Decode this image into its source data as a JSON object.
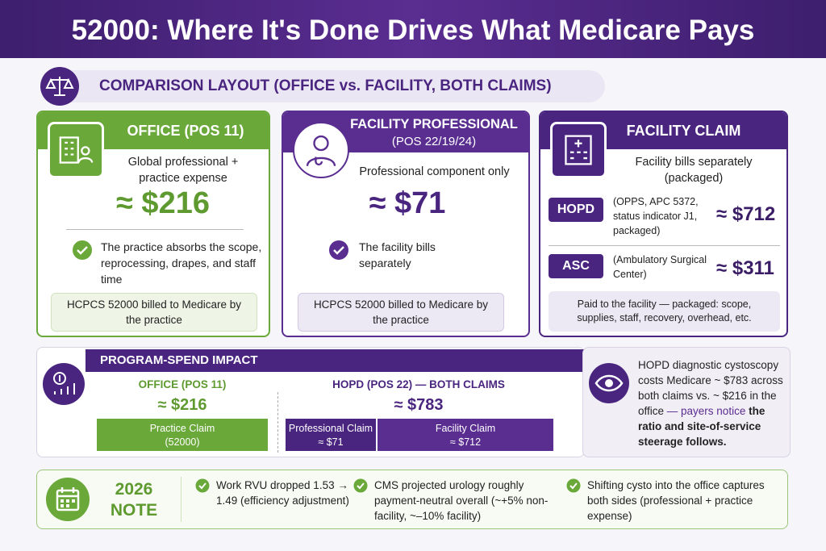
{
  "header": {
    "title": "52000: Where It's Done Drives What Medicare Pays"
  },
  "subtitle": "COMPARISON LAYOUT (OFFICE vs. FACILITY, BOTH CLAIMS)",
  "cards": [
    {
      "title": "OFFICE (POS 11)",
      "description": "Global professional + practice expense",
      "amount": "≈ $216",
      "check": "The practice absorbs the scope, reprocessing, drapes, and staff time",
      "footer": "HCPCS 52000 billed to Medicare by the practice"
    },
    {
      "title": "FACILITY PROFESSIONAL",
      "subtitle": "(POS 22/19/24)",
      "description": "Professional component only",
      "amount": "≈ $71",
      "check": "The facility bills separately",
      "footer": "HCPCS 52000 billed to Medicare by the practice"
    },
    {
      "title": "FACILITY CLAIM",
      "description": "Facility bills separately (packaged)",
      "rows": [
        {
          "label": "HOPD",
          "detail": "(OPPS, APC 5372, status indicator J1, packaged)",
          "amount": "≈ $712"
        },
        {
          "label": "ASC",
          "detail": "(Ambulatory Surgical Center)",
          "amount": "≈ $311"
        }
      ],
      "footer": "Paid to the facility — packaged: scope, supplies, staff, recovery, overhead, etc."
    }
  ],
  "program_spend": {
    "title": "PROGRAM-SPEND IMPACT",
    "office": {
      "label": "OFFICE (POS 11)",
      "amount": "≈ $216",
      "claim": "Practice Claim",
      "claim_code": "(52000)"
    },
    "hopd": {
      "label": "HOPD (POS 22) — BOTH CLAIMS",
      "amount": "≈ $783",
      "claims": [
        {
          "name": "Professional Claim",
          "amount": "≈ $71"
        },
        {
          "name": "Facility Claim",
          "amount": "≈ $712"
        }
      ]
    },
    "note": [
      "HOPD diagnostic cystoscopy costs Medicare ~ $783 across both claims vs. ~ $216 in the office",
      " — payers notice",
      " the ratio and site-of-service steerage follows."
    ]
  },
  "note_2026": {
    "year": "2026",
    "label": "NOTE",
    "items": [
      "Work RVU dropped 1.53 → 1.49 (efficiency adjustment)",
      "CMS projected urology roughly payment-neutral overall (~+5% non-facility, ~–10% facility)",
      "Shifting cysto into the office captures both sides (professional + practice expense)"
    ]
  }
}
